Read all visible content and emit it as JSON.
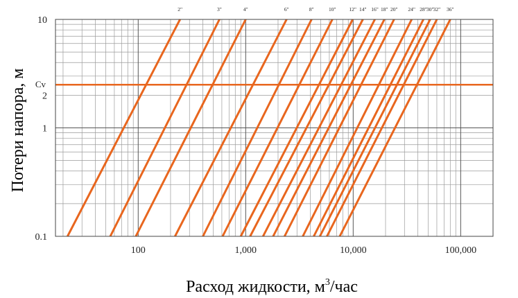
{
  "chart_data": {
    "type": "line",
    "title": "",
    "xlabel": "Расход жидкости, м",
    "xlabel_sup": "3",
    "xlabel_suffix": "/час",
    "ylabel": "Потери напора, м",
    "x_scale": "log",
    "y_scale": "log",
    "xlim": [
      17,
      200000
    ],
    "ylim": [
      0.1,
      10
    ],
    "grid": true,
    "x_ticks": [
      {
        "value": 100,
        "label": "100"
      },
      {
        "value": 1000,
        "label": "1,000"
      },
      {
        "value": 10000,
        "label": "10,000"
      },
      {
        "value": 100000,
        "label": "100,000"
      }
    ],
    "y_ticks": [
      {
        "value": 0.1,
        "label": "0.1"
      },
      {
        "value": 1,
        "label": "1"
      },
      {
        "value": 2,
        "label": "2"
      },
      {
        "value": 10,
        "label": "10"
      }
    ],
    "reference_line": {
      "label": "Cv",
      "y": 2.5,
      "color": "#e8661e"
    },
    "line_color": "#e8661e",
    "series": [
      {
        "name": "2\"",
        "points": [
          [
            22,
            0.1
          ],
          [
            245,
            10
          ]
        ]
      },
      {
        "name": "3\"",
        "points": [
          [
            55,
            0.1
          ],
          [
            570,
            10
          ]
        ]
      },
      {
        "name": "4\"",
        "points": [
          [
            95,
            0.1
          ],
          [
            1000,
            10
          ]
        ]
      },
      {
        "name": "6\"",
        "points": [
          [
            220,
            0.1
          ],
          [
            2400,
            10
          ]
        ]
      },
      {
        "name": "8\"",
        "points": [
          [
            400,
            0.1
          ],
          [
            4100,
            10
          ]
        ]
      },
      {
        "name": "10\"",
        "points": [
          [
            610,
            0.1
          ],
          [
            6400,
            10
          ]
        ]
      },
      {
        "name": "12\"",
        "points": [
          [
            900,
            0.1
          ],
          [
            9900,
            10
          ]
        ]
      },
      {
        "name": "14\"",
        "points": [
          [
            1100,
            0.1
          ],
          [
            12300,
            10
          ]
        ]
      },
      {
        "name": "16\"",
        "points": [
          [
            1450,
            0.1
          ],
          [
            15900,
            10
          ]
        ]
      },
      {
        "name": "18\"",
        "points": [
          [
            1800,
            0.1
          ],
          [
            19500,
            10
          ]
        ]
      },
      {
        "name": "20\"",
        "points": [
          [
            2300,
            0.1
          ],
          [
            24000,
            10
          ]
        ]
      },
      {
        "name": "24\"",
        "points": [
          [
            3400,
            0.1
          ],
          [
            35000,
            10
          ]
        ]
      },
      {
        "name": "28\"",
        "points": [
          [
            4300,
            0.1
          ],
          [
            45000,
            10
          ]
        ]
      },
      {
        "name": "30\"",
        "points": [
          [
            4900,
            0.1
          ],
          [
            52000,
            10
          ]
        ]
      },
      {
        "name": "32\"",
        "points": [
          [
            5700,
            0.1
          ],
          [
            60000,
            10
          ]
        ]
      },
      {
        "name": "36\"",
        "points": [
          [
            7500,
            0.1
          ],
          [
            80000,
            10
          ]
        ]
      }
    ]
  }
}
